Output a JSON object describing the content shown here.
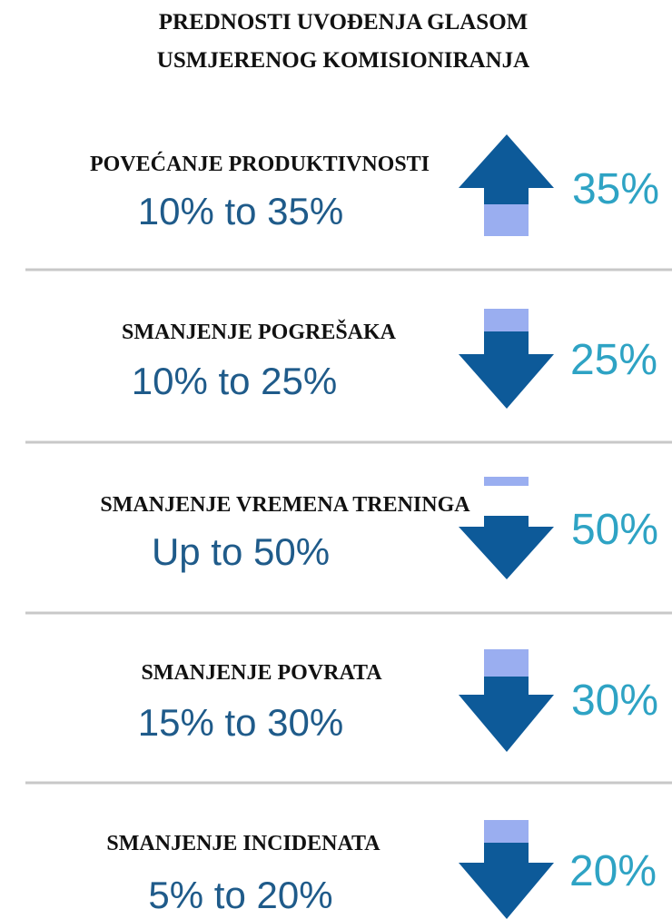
{
  "title": [
    "PREDNOSTI UVOĐENJA GLASOM",
    "USMJERENOG KOMISIONIRANJA"
  ],
  "items": [
    {
      "label": "POVEĆANJE PRODUKTIVNOSTI",
      "range": "10% to 35%",
      "percent": "35%"
    },
    {
      "label": "SMANJENJE POGREŠAKA",
      "range": "10% to 25%",
      "percent": "25%"
    },
    {
      "label": "SMANJENJE VREMENA TRENINGA",
      "range": "Up to 50%",
      "percent": "50%"
    },
    {
      "label": "SMANJENJE POVRATA",
      "range": "15% to 30%",
      "percent": "30%"
    },
    {
      "label": "SMANJENJE INCIDENATA",
      "range": "5% to 20%",
      "percent": "20%"
    }
  ]
}
